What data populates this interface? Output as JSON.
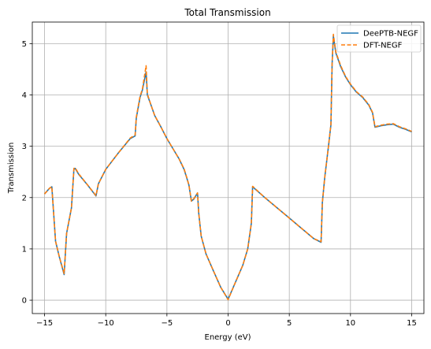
{
  "chart_data": {
    "type": "line",
    "title": "Total Transmission",
    "xlabel": "Energy (eV)",
    "ylabel": "Transmission",
    "xlim": [
      -16.0,
      16.0
    ],
    "ylim": [
      -0.26,
      5.42
    ],
    "xticks": [
      -15,
      -10,
      -5,
      0,
      5,
      10,
      15
    ],
    "yticks": [
      0,
      1,
      2,
      3,
      4,
      5
    ],
    "grid": true,
    "legend": "top-right",
    "series": [
      {
        "name": "DeePTB-NEGF",
        "color": "#1f77b4",
        "style": "solid",
        "x": [
          -15.0,
          -14.6,
          -14.4,
          -14.1,
          -13.8,
          -13.4,
          -13.2,
          -12.8,
          -12.6,
          -12.5,
          -12.2,
          -11.5,
          -10.8,
          -10.6,
          -10.0,
          -9.0,
          -8.0,
          -7.6,
          -7.5,
          -7.2,
          -7.0,
          -6.7,
          -6.6,
          -6.3,
          -6.0,
          -5.5,
          -5.0,
          -4.5,
          -4.0,
          -3.6,
          -3.4,
          -3.2,
          -3.0,
          -2.8,
          -2.5,
          -2.4,
          -2.2,
          -1.8,
          -1.2,
          -0.6,
          0.0,
          0.6,
          1.2,
          1.6,
          1.9,
          2.0,
          3.0,
          4.0,
          5.0,
          6.0,
          7.0,
          7.6,
          7.7,
          7.9,
          8.2,
          8.4,
          8.5,
          8.6,
          8.8,
          9.2,
          9.6,
          10.0,
          10.5,
          11.0,
          11.5,
          11.8,
          12.0,
          12.5,
          13.0,
          13.5,
          14.0,
          14.5,
          15.0
        ],
        "y": [
          2.07,
          2.18,
          2.21,
          1.15,
          0.85,
          0.5,
          1.3,
          1.8,
          2.55,
          2.57,
          2.45,
          2.25,
          2.03,
          2.27,
          2.55,
          2.86,
          3.15,
          3.2,
          3.55,
          3.95,
          4.1,
          4.45,
          4.0,
          3.8,
          3.6,
          3.38,
          3.15,
          2.95,
          2.75,
          2.55,
          2.4,
          2.24,
          1.93,
          1.97,
          2.09,
          1.7,
          1.25,
          0.9,
          0.57,
          0.25,
          0.02,
          0.35,
          0.68,
          1.0,
          1.5,
          2.21,
          2.0,
          1.8,
          1.6,
          1.4,
          1.2,
          1.13,
          1.9,
          2.4,
          3.0,
          3.42,
          4.6,
          5.15,
          4.82,
          4.55,
          4.35,
          4.2,
          4.05,
          3.95,
          3.8,
          3.65,
          3.37,
          3.4,
          3.42,
          3.43,
          3.37,
          3.33,
          3.28
        ]
      },
      {
        "name": "DFT-NEGF",
        "color": "#ff7f0e",
        "style": "dashed",
        "x": [
          -15.0,
          -14.6,
          -14.4,
          -14.1,
          -13.8,
          -13.4,
          -13.2,
          -12.8,
          -12.6,
          -12.5,
          -12.2,
          -11.5,
          -10.8,
          -10.6,
          -10.0,
          -9.0,
          -8.0,
          -7.6,
          -7.5,
          -7.2,
          -7.0,
          -6.7,
          -6.6,
          -6.3,
          -6.0,
          -5.5,
          -5.0,
          -4.5,
          -4.0,
          -3.6,
          -3.4,
          -3.2,
          -3.0,
          -2.8,
          -2.5,
          -2.4,
          -2.2,
          -1.8,
          -1.2,
          -0.6,
          0.0,
          0.6,
          1.2,
          1.6,
          1.9,
          2.0,
          3.0,
          4.0,
          5.0,
          6.0,
          7.0,
          7.6,
          7.7,
          7.9,
          8.2,
          8.4,
          8.5,
          8.6,
          8.8,
          9.2,
          9.6,
          10.0,
          10.5,
          11.0,
          11.5,
          11.8,
          12.0,
          12.5,
          13.0,
          13.5,
          14.0,
          14.5,
          15.0
        ],
        "y": [
          2.07,
          2.18,
          2.21,
          1.15,
          0.85,
          0.52,
          1.3,
          1.8,
          2.57,
          2.58,
          2.46,
          2.25,
          2.04,
          2.27,
          2.55,
          2.86,
          3.16,
          3.22,
          3.57,
          3.97,
          4.12,
          4.57,
          4.02,
          3.8,
          3.6,
          3.38,
          3.15,
          2.95,
          2.75,
          2.56,
          2.41,
          2.24,
          1.93,
          1.98,
          2.09,
          1.7,
          1.25,
          0.9,
          0.57,
          0.25,
          0.01,
          0.35,
          0.68,
          1.0,
          1.5,
          2.22,
          2.0,
          1.8,
          1.6,
          1.4,
          1.2,
          1.14,
          1.9,
          2.4,
          3.0,
          3.43,
          4.62,
          5.18,
          4.84,
          4.57,
          4.36,
          4.21,
          4.06,
          3.96,
          3.81,
          3.66,
          3.38,
          3.41,
          3.43,
          3.44,
          3.38,
          3.34,
          3.29
        ]
      }
    ]
  }
}
